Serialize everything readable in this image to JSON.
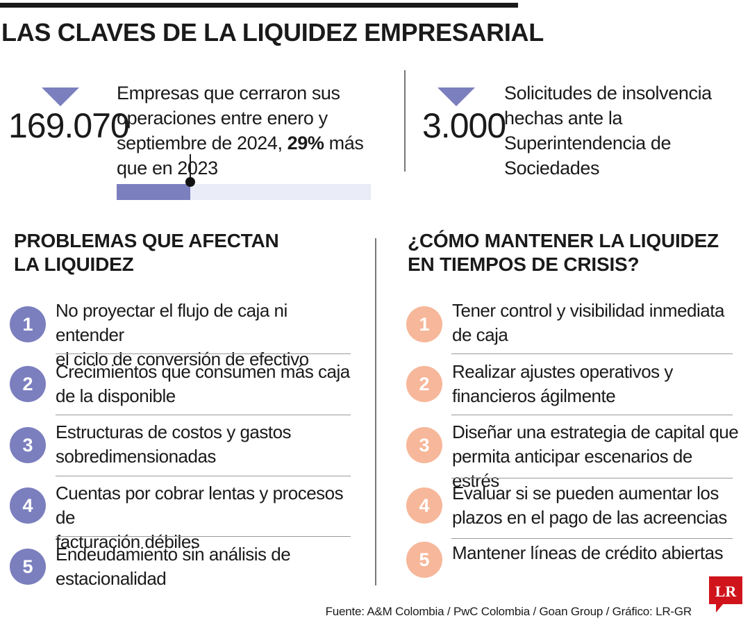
{
  "title": "LAS CLAVES DE LA LIQUIDEZ EMPRESARIAL",
  "colors": {
    "purple": "#7b7fbe",
    "purple_light": "#e9ecf7",
    "peach": "#f7b79a",
    "dark": "#1a1a1a",
    "logo_red": "#d0141c"
  },
  "stats": [
    {
      "number": "169.070",
      "text_before": "Empresas que cerraron sus operaciones entre enero y septiembre de 2024, ",
      "highlight": "29%",
      "text_after": " más que en 2023",
      "bar_fraction": 0.29,
      "icon": "triangle-down-icon"
    },
    {
      "number": "3.000",
      "text": "Solicitudes de insolvencia hechas ante la Superintendencia de Sociedades",
      "icon": "triangle-down-icon"
    }
  ],
  "problems": {
    "heading_line1": "PROBLEMAS QUE AFECTAN",
    "heading_line2": "LA LIQUIDEZ",
    "items": [
      {
        "num": "1",
        "line1": "No proyectar el flujo de caja ni entender",
        "line2": "el ciclo de conversión de efectivo"
      },
      {
        "num": "2",
        "line1": "Crecimientos que consumen más caja",
        "line2": "de la disponible"
      },
      {
        "num": "3",
        "line1": "Estructuras de costos y gastos",
        "line2": "sobredimensionadas"
      },
      {
        "num": "4",
        "line1": "Cuentas por cobrar lentas y procesos de",
        "line2": "facturación débiles"
      },
      {
        "num": "5",
        "line1": "Endeudamiento sin análisis de",
        "line2": "estacionalidad"
      }
    ]
  },
  "solutions": {
    "heading_line1": "¿CÓMO MANTENER LA LIQUIDEZ",
    "heading_line2": "EN TIEMPOS DE CRISIS?",
    "items": [
      {
        "num": "1",
        "line1": "Tener control y visibilidad inmediata",
        "line2": "de caja"
      },
      {
        "num": "2",
        "line1": "Realizar ajustes operativos y",
        "line2": "financieros ágilmente"
      },
      {
        "num": "3",
        "line1": "Diseñar una estrategia de capital que",
        "line2": "permita anticipar escenarios de estrés"
      },
      {
        "num": "4",
        "line1": "Evaluar si se pueden aumentar los",
        "line2": "plazos en el pago de las acreencias"
      },
      {
        "num": "5",
        "line1": "Mantener líneas de crédito abiertas",
        "line2": ""
      }
    ]
  },
  "source": "Fuente: A&M Colombia / PwC Colombia / Goan Group / Gráfico: LR-GR",
  "logo_text": "LR"
}
